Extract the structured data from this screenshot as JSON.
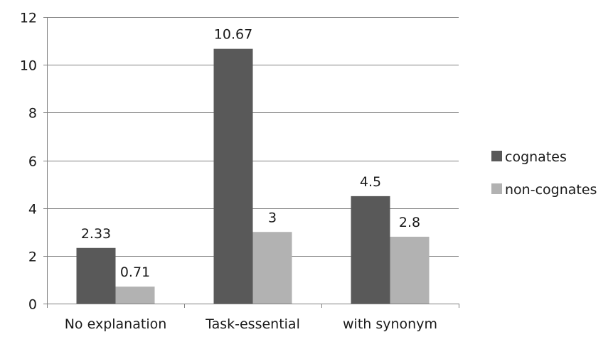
{
  "chart_data": {
    "type": "bar",
    "categories": [
      "No explanation",
      "Task-essential",
      "with synonym"
    ],
    "series": [
      {
        "name": "cognates",
        "values": [
          2.33,
          10.67,
          4.5
        ],
        "labels": [
          "2.33",
          "10.67",
          "4.5"
        ],
        "color": "#595959"
      },
      {
        "name": "non-cognates",
        "values": [
          0.71,
          3,
          2.8
        ],
        "labels": [
          "0.71",
          "3",
          "2.8"
        ],
        "color": "#b2b2b2"
      }
    ],
    "ylim": [
      0,
      12
    ],
    "yticks": [
      0,
      2,
      4,
      6,
      8,
      10,
      12
    ],
    "grid": true,
    "legend_position": "right"
  }
}
